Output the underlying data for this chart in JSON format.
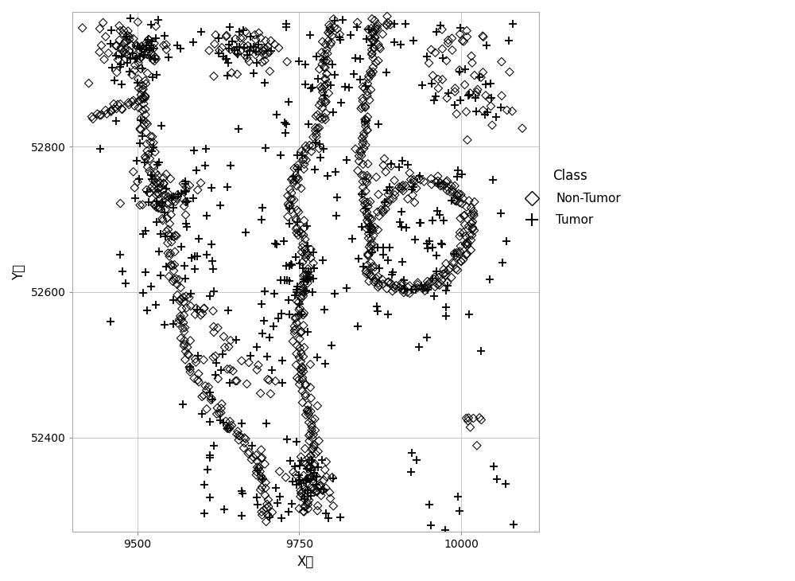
{
  "xlabel": "X轴",
  "ylabel": "Y轴",
  "xlim": [
    9400,
    10120
  ],
  "ylim": [
    52270,
    52985
  ],
  "xticks": [
    9500,
    9750,
    10000
  ],
  "yticks": [
    52400,
    52600,
    52800
  ],
  "legend_title": "Class",
  "background_color": "#ffffff",
  "grid_color": "#c8c8c8",
  "marker_color": "#000000",
  "xlabel_fontsize": 12,
  "ylabel_fontsize": 12,
  "tick_fontsize": 10,
  "legend_fontsize": 11,
  "legend_title_fontsize": 12
}
